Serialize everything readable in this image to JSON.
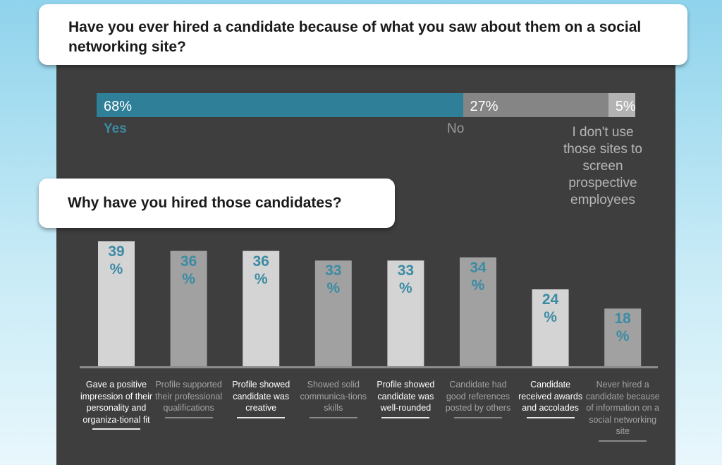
{
  "question1": "Have you ever hired a candidate because of what you saw about them on a social networking site?",
  "question2": "Why have you hired those candidates?",
  "colors": {
    "yes": "#2f7f98",
    "no": "#858585",
    "none": "#b3b3b3",
    "accent_text": "#3b8ba4",
    "bar_light": "#d4d4d4",
    "bar_dark": "#a1a1a1",
    "panel": "#3e3e3e"
  },
  "stacked": {
    "segments": [
      {
        "value": 68,
        "pct_label": "68%",
        "label": "Yes"
      },
      {
        "value": 27,
        "pct_label": "27%",
        "label": "No"
      },
      {
        "value": 5,
        "pct_label": "5%",
        "label": "I don't use those sites to screen prospective employees"
      }
    ]
  },
  "chart_data": {
    "type": "bar",
    "categories": [
      "Gave a positive impression of their personality and organiza-tional fit",
      "Profile supported their professional qualifications",
      "Profile showed candidate was creative",
      "Showed solid communica-tions skills",
      "Profile showed candidate was well-rounded",
      "Candidate had good references posted by others",
      "Candidate received awards and accolades",
      "Never hired a candidate because of information on a social networking site"
    ],
    "values": [
      39,
      36,
      36,
      33,
      33,
      34,
      24,
      18
    ],
    "value_labels": [
      [
        "39",
        "%"
      ],
      [
        "36",
        "%"
      ],
      [
        "36",
        "%"
      ],
      [
        "33",
        "%"
      ],
      [
        "33",
        "%"
      ],
      [
        "34",
        "%"
      ],
      [
        "24",
        "%"
      ],
      [
        "18",
        "%"
      ]
    ],
    "title": "Why have you hired those candidates?",
    "ylim": [
      0,
      39
    ],
    "grid": false,
    "legend": "none"
  }
}
